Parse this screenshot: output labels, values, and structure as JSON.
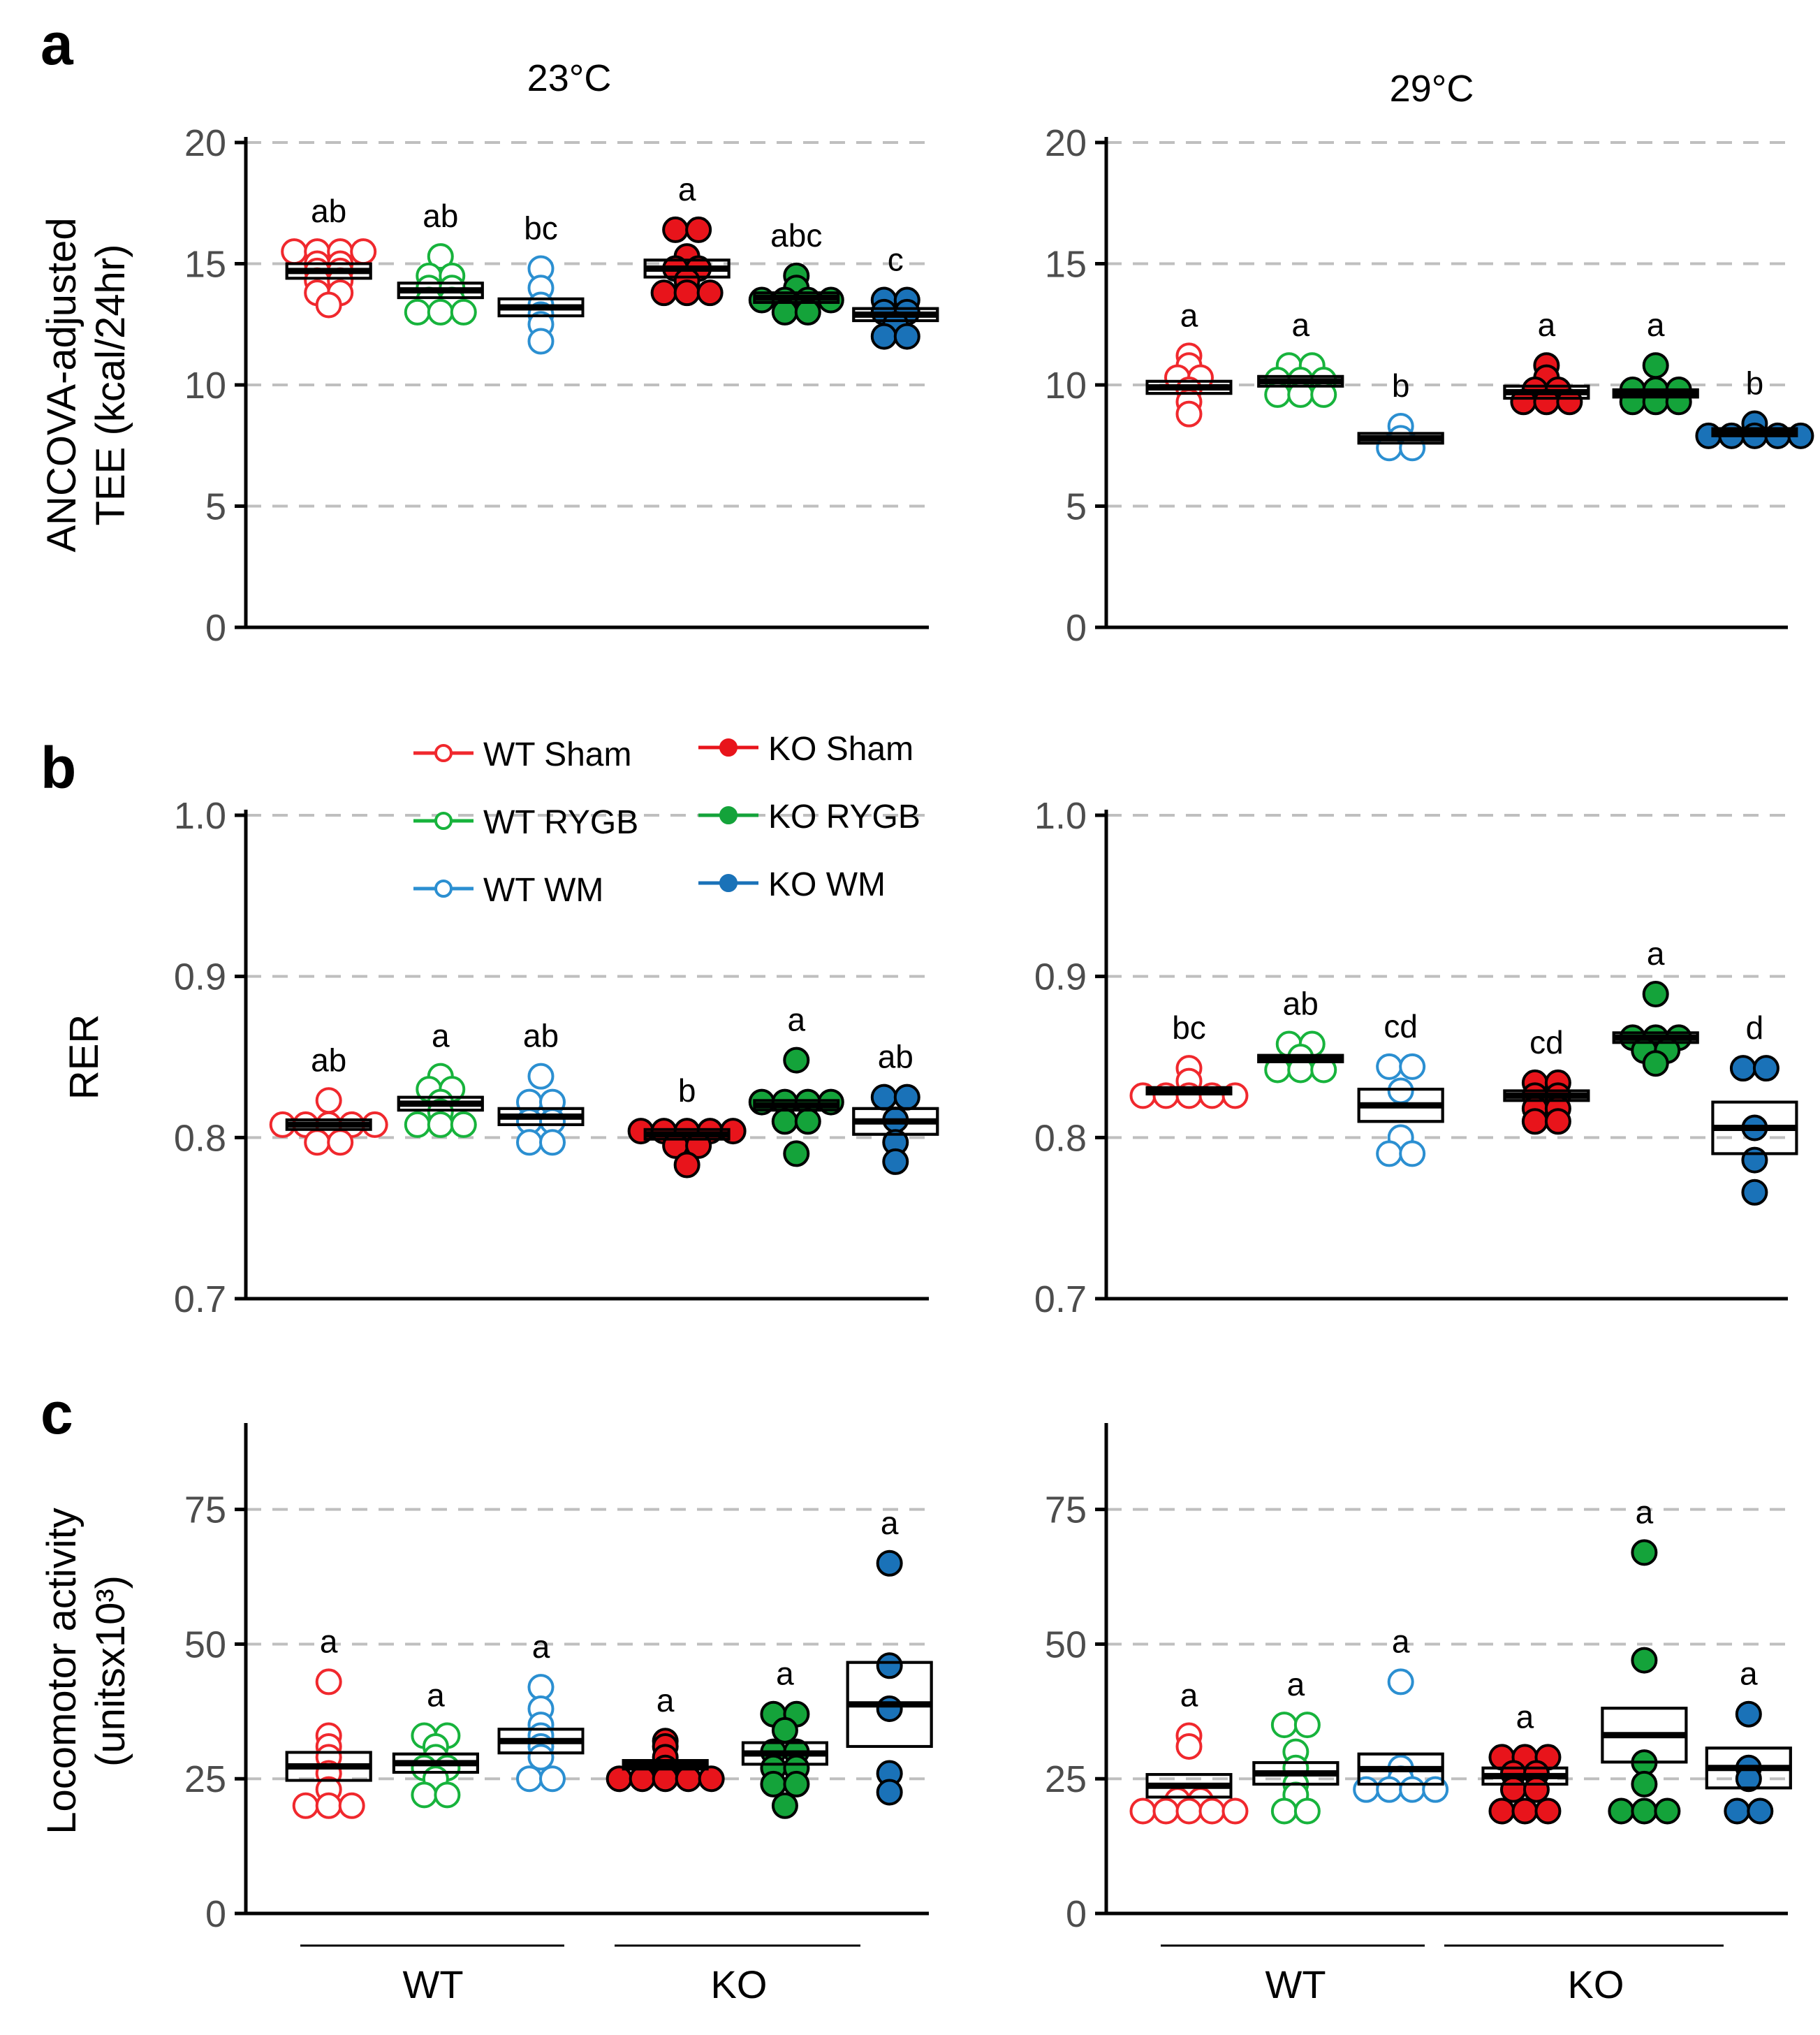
{
  "figure": {
    "panel_labels": [
      "a",
      "b",
      "c"
    ],
    "column_titles": [
      "23°C",
      "29°C"
    ],
    "group_labels": [
      "WT",
      "KO"
    ]
  },
  "legend": [
    {
      "label": "WT Sham",
      "color": "#f0282d",
      "filled": false
    },
    {
      "label": "WT RYGB",
      "color": "#17b33c",
      "filled": false
    },
    {
      "label": "WT WM",
      "color": "#2b8fd1",
      "filled": false
    },
    {
      "label": "KO Sham",
      "color": "#e8141b",
      "filled": true
    },
    {
      "label": "KO RYGB",
      "color": "#14a33a",
      "filled": true
    },
    {
      "label": "KO WM",
      "color": "#1a72b8",
      "filled": true
    }
  ],
  "colors": {
    "WT Sham": "#f0282d",
    "WT RYGB": "#17b33c",
    "WT WM": "#2b8fd1",
    "KO Sham": "#e8141b",
    "KO RYGB": "#14a33a",
    "KO WM": "#1a72b8",
    "grid": "#bfbfbf",
    "axis": "#000000"
  },
  "chart_data": [
    {
      "id": "a-23",
      "type": "scatter",
      "panel": "a",
      "title": "23°C",
      "ylabel_lines": [
        "ANCOVA-adjusted",
        "TEE (kcal/24hr)"
      ],
      "ylim": [
        0,
        20
      ],
      "yticks": [
        "0",
        "5",
        "10",
        "15",
        "20"
      ],
      "ytick_values": [
        0,
        5,
        10,
        15,
        20
      ],
      "grid": true,
      "series": [
        {
          "name": "WT Sham",
          "letter": "ab",
          "mean": 14.7,
          "se": 0.3,
          "values": [
            13.3,
            13.8,
            13.8,
            14.3,
            14.3,
            14.7,
            14.7,
            15.0,
            15.0,
            15.5,
            15.5,
            15.5,
            15.5
          ]
        },
        {
          "name": "WT RYGB",
          "letter": "ab",
          "mean": 13.9,
          "se": 0.3,
          "values": [
            13.0,
            13.0,
            13.0,
            13.5,
            13.5,
            14.0,
            14.0,
            14.5,
            14.5,
            15.3
          ]
        },
        {
          "name": "WT WM",
          "letter": "bc",
          "mean": 13.2,
          "se": 0.35,
          "values": [
            11.8,
            12.5,
            12.9,
            13.3,
            14.0,
            14.8
          ]
        },
        {
          "name": "KO Sham",
          "letter": "a",
          "mean": 14.8,
          "se": 0.35,
          "values": [
            13.8,
            13.8,
            13.8,
            14.3,
            14.8,
            14.8,
            15.3,
            16.4,
            16.4
          ]
        },
        {
          "name": "KO RYGB",
          "letter": "abc",
          "mean": 13.6,
          "se": 0.2,
          "values": [
            13.0,
            13.0,
            13.5,
            13.5,
            13.5,
            13.5,
            14.0,
            14.5
          ]
        },
        {
          "name": "KO WM",
          "letter": "c",
          "mean": 12.9,
          "se": 0.25,
          "values": [
            12.0,
            12.0,
            12.5,
            13.0,
            13.0,
            13.5,
            13.5
          ]
        }
      ]
    },
    {
      "id": "a-29",
      "type": "scatter",
      "panel": "a",
      "title": "29°C",
      "ylabel_lines": [],
      "ylim": [
        0,
        20
      ],
      "yticks": [
        "0",
        "5",
        "10",
        "15",
        "20"
      ],
      "ytick_values": [
        0,
        5,
        10,
        15,
        20
      ],
      "grid": true,
      "series": [
        {
          "name": "WT Sham",
          "letter": "a",
          "mean": 9.9,
          "se": 0.25,
          "values": [
            8.8,
            9.3,
            9.8,
            10.3,
            10.3,
            10.8,
            11.2
          ]
        },
        {
          "name": "WT RYGB",
          "letter": "a",
          "mean": 10.15,
          "se": 0.2,
          "values": [
            9.6,
            9.6,
            9.6,
            10.2,
            10.2,
            10.2,
            10.8,
            10.8
          ]
        },
        {
          "name": "WT WM",
          "letter": "b",
          "mean": 7.8,
          "se": 0.2,
          "values": [
            7.4,
            7.4,
            7.8,
            8.3
          ]
        },
        {
          "name": "KO Sham",
          "letter": "a",
          "mean": 9.7,
          "se": 0.25,
          "values": [
            9.3,
            9.3,
            9.3,
            9.8,
            9.8,
            10.3,
            10.8
          ]
        },
        {
          "name": "KO RYGB",
          "letter": "a",
          "mean": 9.65,
          "se": 0.15,
          "values": [
            9.3,
            9.3,
            9.3,
            9.8,
            9.8,
            9.8,
            10.8
          ]
        },
        {
          "name": "KO WM",
          "letter": "b",
          "mean": 8.05,
          "se": 0.15,
          "values": [
            7.9,
            7.9,
            7.9,
            7.9,
            7.9,
            8.4
          ]
        }
      ]
    },
    {
      "id": "b-23",
      "type": "scatter",
      "panel": "b",
      "title": "",
      "ylabel_lines": [
        "RER"
      ],
      "ylim": [
        0.7,
        1.0
      ],
      "yticks": [
        "0.7",
        "0.8",
        "0.9",
        "1.0"
      ],
      "ytick_values": [
        0.7,
        0.8,
        0.9,
        1.0
      ],
      "grid": true,
      "series": [
        {
          "name": "WT Sham",
          "letter": "ab",
          "mean": 0.808,
          "se": 0.003,
          "values": [
            0.797,
            0.797,
            0.808,
            0.808,
            0.808,
            0.808,
            0.808,
            0.823
          ]
        },
        {
          "name": "WT RYGB",
          "letter": "a",
          "mean": 0.821,
          "se": 0.004,
          "values": [
            0.808,
            0.808,
            0.808,
            0.816,
            0.822,
            0.83,
            0.83,
            0.838
          ]
        },
        {
          "name": "WT WM",
          "letter": "ab",
          "mean": 0.813,
          "se": 0.005,
          "values": [
            0.797,
            0.797,
            0.81,
            0.81,
            0.822,
            0.822,
            0.838
          ]
        },
        {
          "name": "KO Sham",
          "letter": "b",
          "mean": 0.802,
          "se": 0.003,
          "values": [
            0.783,
            0.795,
            0.795,
            0.804,
            0.804,
            0.804,
            0.804,
            0.804
          ]
        },
        {
          "name": "KO RYGB",
          "letter": "a",
          "mean": 0.82,
          "se": 0.003,
          "values": [
            0.79,
            0.81,
            0.81,
            0.822,
            0.822,
            0.822,
            0.822,
            0.848
          ]
        },
        {
          "name": "KO WM",
          "letter": "ab",
          "mean": 0.81,
          "se": 0.008,
          "values": [
            0.785,
            0.797,
            0.811,
            0.825,
            0.825
          ]
        }
      ]
    },
    {
      "id": "b-29",
      "type": "scatter",
      "panel": "b",
      "title": "",
      "ylabel_lines": [],
      "ylim": [
        0.7,
        1.0
      ],
      "yticks": [
        "0.7",
        "0.8",
        "0.9",
        "1.0"
      ],
      "ytick_values": [
        0.7,
        0.8,
        0.9,
        1.0
      ],
      "grid": true,
      "series": [
        {
          "name": "WT Sham",
          "letter": "bc",
          "mean": 0.829,
          "se": 0.002,
          "values": [
            0.826,
            0.826,
            0.826,
            0.826,
            0.826,
            0.835,
            0.843
          ]
        },
        {
          "name": "WT RYGB",
          "letter": "ab",
          "mean": 0.849,
          "se": 0.002,
          "values": [
            0.842,
            0.842,
            0.842,
            0.85,
            0.858,
            0.858
          ]
        },
        {
          "name": "WT WM",
          "letter": "cd",
          "mean": 0.82,
          "se": 0.01,
          "values": [
            0.79,
            0.79,
            0.8,
            0.829,
            0.844,
            0.844
          ]
        },
        {
          "name": "KO Sham",
          "letter": "cd",
          "mean": 0.826,
          "se": 0.003,
          "values": [
            0.81,
            0.81,
            0.818,
            0.818,
            0.826,
            0.826,
            0.834,
            0.834
          ]
        },
        {
          "name": "KO RYGB",
          "letter": "a",
          "mean": 0.862,
          "se": 0.003,
          "values": [
            0.846,
            0.854,
            0.854,
            0.862,
            0.862,
            0.862,
            0.889
          ]
        },
        {
          "name": "KO WM",
          "letter": "d",
          "mean": 0.806,
          "se": 0.016,
          "values": [
            0.766,
            0.786,
            0.806,
            0.843,
            0.843
          ]
        }
      ]
    },
    {
      "id": "c-23",
      "type": "scatter",
      "panel": "c",
      "title": "",
      "ylabel_lines": [
        "Locomotor activity",
        "(unitsx10³)"
      ],
      "ylim": [
        0,
        90
      ],
      "yticks": [
        "0",
        "25",
        "50",
        "75"
      ],
      "ytick_values": [
        0,
        25,
        50,
        75
      ],
      "grid": true,
      "series": [
        {
          "name": "WT Sham",
          "letter": "a",
          "mean": 27.3,
          "se": 2.6,
          "values": [
            20,
            20,
            20,
            23,
            26,
            29,
            31,
            33,
            43
          ]
        },
        {
          "name": "WT RYGB",
          "letter": "a",
          "mean": 27.9,
          "se": 1.7,
          "values": [
            22,
            22,
            25,
            27,
            27,
            29,
            31,
            33,
            33
          ]
        },
        {
          "name": "WT WM",
          "letter": "a",
          "mean": 32.0,
          "se": 2.2,
          "values": [
            25,
            25,
            29,
            31,
            33,
            35,
            38,
            42
          ]
        },
        {
          "name": "KO Sham",
          "letter": "a",
          "mean": 27.6,
          "se": 0.8,
          "values": [
            25,
            25,
            25,
            25,
            25,
            27,
            29,
            31,
            32
          ]
        },
        {
          "name": "KO RYGB",
          "letter": "a",
          "mean": 29.7,
          "se": 2.0,
          "values": [
            20,
            24,
            24,
            27,
            27,
            30,
            30,
            34,
            37,
            37
          ]
        },
        {
          "name": "KO WM",
          "letter": "a",
          "mean": 38.8,
          "se": 7.8,
          "values": [
            22.5,
            26,
            38,
            46,
            65
          ]
        }
      ]
    },
    {
      "id": "c-29",
      "type": "scatter",
      "panel": "c",
      "title": "",
      "ylabel_lines": [],
      "ylim": [
        0,
        90
      ],
      "yticks": [
        "0",
        "25",
        "50",
        "75"
      ],
      "ytick_values": [
        0,
        25,
        50,
        75
      ],
      "grid": true,
      "series": [
        {
          "name": "WT Sham",
          "letter": "a",
          "mean": 23.7,
          "se": 2.1,
          "values": [
            19,
            19,
            19,
            19,
            19,
            21,
            21,
            31,
            33
          ]
        },
        {
          "name": "WT RYGB",
          "letter": "a",
          "mean": 26.0,
          "se": 2.0,
          "values": [
            19,
            19,
            22,
            24,
            27,
            30,
            35,
            35
          ]
        },
        {
          "name": "WT WM",
          "letter": "a",
          "mean": 26.8,
          "se": 2.8,
          "values": [
            23,
            23,
            23,
            23,
            25,
            27,
            43
          ]
        },
        {
          "name": "KO Sham",
          "letter": "a",
          "mean": 25.5,
          "se": 1.5,
          "values": [
            19,
            19,
            19,
            23,
            23,
            26,
            26,
            29,
            29,
            29
          ]
        },
        {
          "name": "KO RYGB",
          "letter": "a",
          "mean": 33.1,
          "se": 5.0,
          "values": [
            19,
            19,
            19,
            24,
            28,
            47,
            67
          ]
        },
        {
          "name": "KO WM",
          "letter": "a",
          "mean": 27.0,
          "se": 3.7,
          "values": [
            19,
            19,
            25,
            27,
            37
          ]
        }
      ]
    }
  ]
}
